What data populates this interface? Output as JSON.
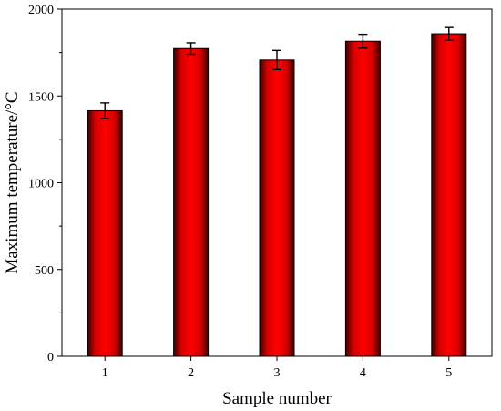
{
  "chart_data": {
    "type": "bar",
    "categories": [
      "1",
      "2",
      "3",
      "4",
      "5"
    ],
    "values": [
      1415,
      1773,
      1707,
      1815,
      1858
    ],
    "errors": [
      45,
      33,
      55,
      40,
      36
    ],
    "title": "",
    "xlabel": "Sample number",
    "ylabel": "Maximum temperature/°C",
    "ylim": [
      0,
      2000
    ],
    "yticks": [
      "0",
      "500",
      "1000",
      "1500",
      "2000"
    ],
    "grid": false,
    "bar_color": "#ff0000",
    "bar_shade_color": "#3a0000"
  }
}
